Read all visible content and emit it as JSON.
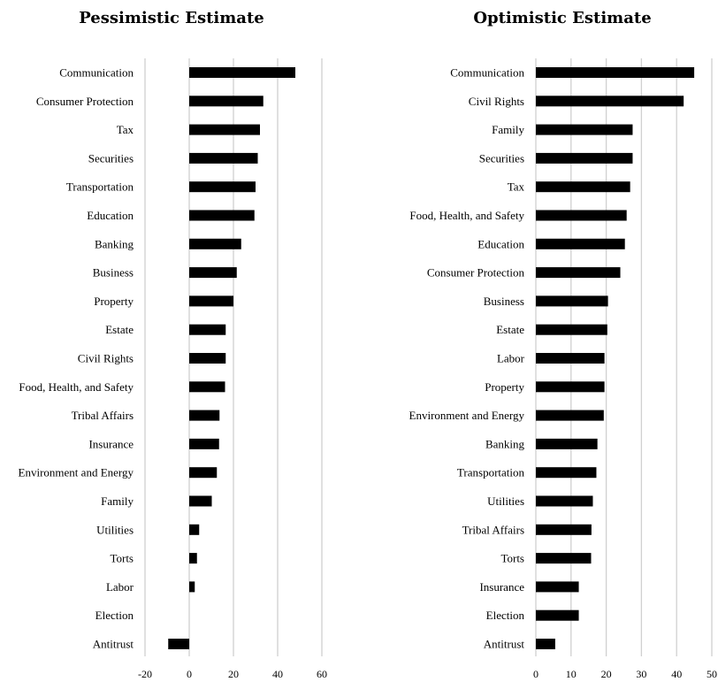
{
  "chart_data": [
    {
      "type": "bar",
      "orientation": "horizontal",
      "title": "Pessimistic Estimate",
      "categories": [
        "Communication",
        "Consumer Protection",
        "Tax",
        "Securities",
        "Transportation",
        "Education",
        "Banking",
        "Business",
        "Property",
        "Estate",
        "Civil Rights",
        "Food, Health, and Safety",
        "Tribal Affairs",
        "Insurance",
        "Environment and Energy",
        "Family",
        "Utilities",
        "Torts",
        "Labor",
        "Election",
        "Antitrust"
      ],
      "values": [
        48,
        33.5,
        32,
        31,
        30,
        29.5,
        23.5,
        21.5,
        20,
        16.5,
        16.5,
        16.2,
        13.7,
        13.5,
        12.5,
        10.2,
        4.5,
        3.5,
        2.5,
        0,
        -9.5
      ],
      "xlim": [
        -20,
        60
      ],
      "xticks": [
        "-20",
        "0",
        "20",
        "40",
        "60"
      ],
      "xtick_values": [
        -20,
        0,
        20,
        40,
        60
      ],
      "grid": true,
      "xlabel": "",
      "ylabel": ""
    },
    {
      "type": "bar",
      "orientation": "horizontal",
      "title": "Optimistic Estimate",
      "categories": [
        "Communication",
        "Civil Rights",
        "Family",
        "Securities",
        "Tax",
        "Food, Health, and Safety",
        "Education",
        "Consumer Protection",
        "Business",
        "Estate",
        "Labor",
        "Property",
        "Environment and Energy",
        "Banking",
        "Transportation",
        "Utilities",
        "Tribal Affairs",
        "Torts",
        "Insurance",
        "Election",
        "Antitrust"
      ],
      "values": [
        45,
        42,
        27.5,
        27.5,
        26.8,
        25.8,
        25.3,
        24,
        20.5,
        20.3,
        19.5,
        19.5,
        19.3,
        17.5,
        17.2,
        16.2,
        15.8,
        15.7,
        12.2,
        12.2,
        5.5
      ],
      "xlim": [
        0,
        50
      ],
      "xticks": [
        "0",
        "10",
        "20",
        "30",
        "40",
        "50"
      ],
      "xtick_values": [
        0,
        10,
        20,
        30,
        40,
        50
      ],
      "grid": true,
      "xlabel": "",
      "ylabel": ""
    }
  ]
}
